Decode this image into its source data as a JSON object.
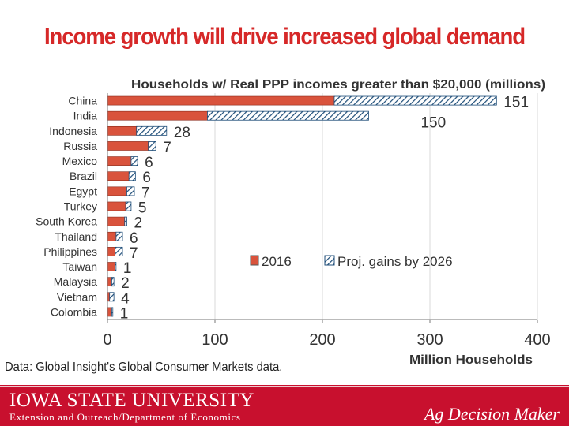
{
  "slide": {
    "title": "Income growth will drive increased global demand",
    "source_note": "Data: Global Insight's Global Consumer Markets data."
  },
  "footer": {
    "university": "IOWA STATE UNIVERSITY",
    "department": "Extension and Outreach/Department of Economics",
    "brand": "Ag Decision Maker"
  },
  "colors": {
    "accent_red": "#c8102e",
    "bar_2016": "#d9533c",
    "hatch_blue": "#1f4e79"
  },
  "chart_data": {
    "type": "bar",
    "orientation": "horizontal",
    "stacked": true,
    "title": "Households w/ Real PPP incomes greater than $20,000 (millions)",
    "xlabel": "Million Households",
    "ylabel": "",
    "xlim": [
      0,
      400
    ],
    "xticks": [
      0,
      100,
      200,
      300,
      400
    ],
    "grid": true,
    "legend_position": "bottom-right",
    "categories": [
      "China",
      "India",
      "Indonesia",
      "Russia",
      "Mexico",
      "Brazil",
      "Egypt",
      "Turkey",
      "South Korea",
      "Thailand",
      "Philippines",
      "Taiwan",
      "Malaysia",
      "Vietnam",
      "Colombia"
    ],
    "series": [
      {
        "name": "2016",
        "values": [
          211,
          93,
          27,
          38,
          22,
          20,
          18,
          17,
          16,
          8,
          7,
          7,
          4,
          2,
          4
        ]
      },
      {
        "name": "Proj. gains by 2026",
        "values": [
          151,
          150,
          28,
          7,
          6,
          6,
          7,
          5,
          2,
          6,
          7,
          1,
          2,
          4,
          1
        ]
      }
    ],
    "gain_labels": [
      "151",
      "150",
      "28",
      "7",
      "6",
      "6",
      "7",
      "5",
      "2",
      "6",
      "7",
      "1",
      "2",
      "4",
      "1"
    ]
  }
}
